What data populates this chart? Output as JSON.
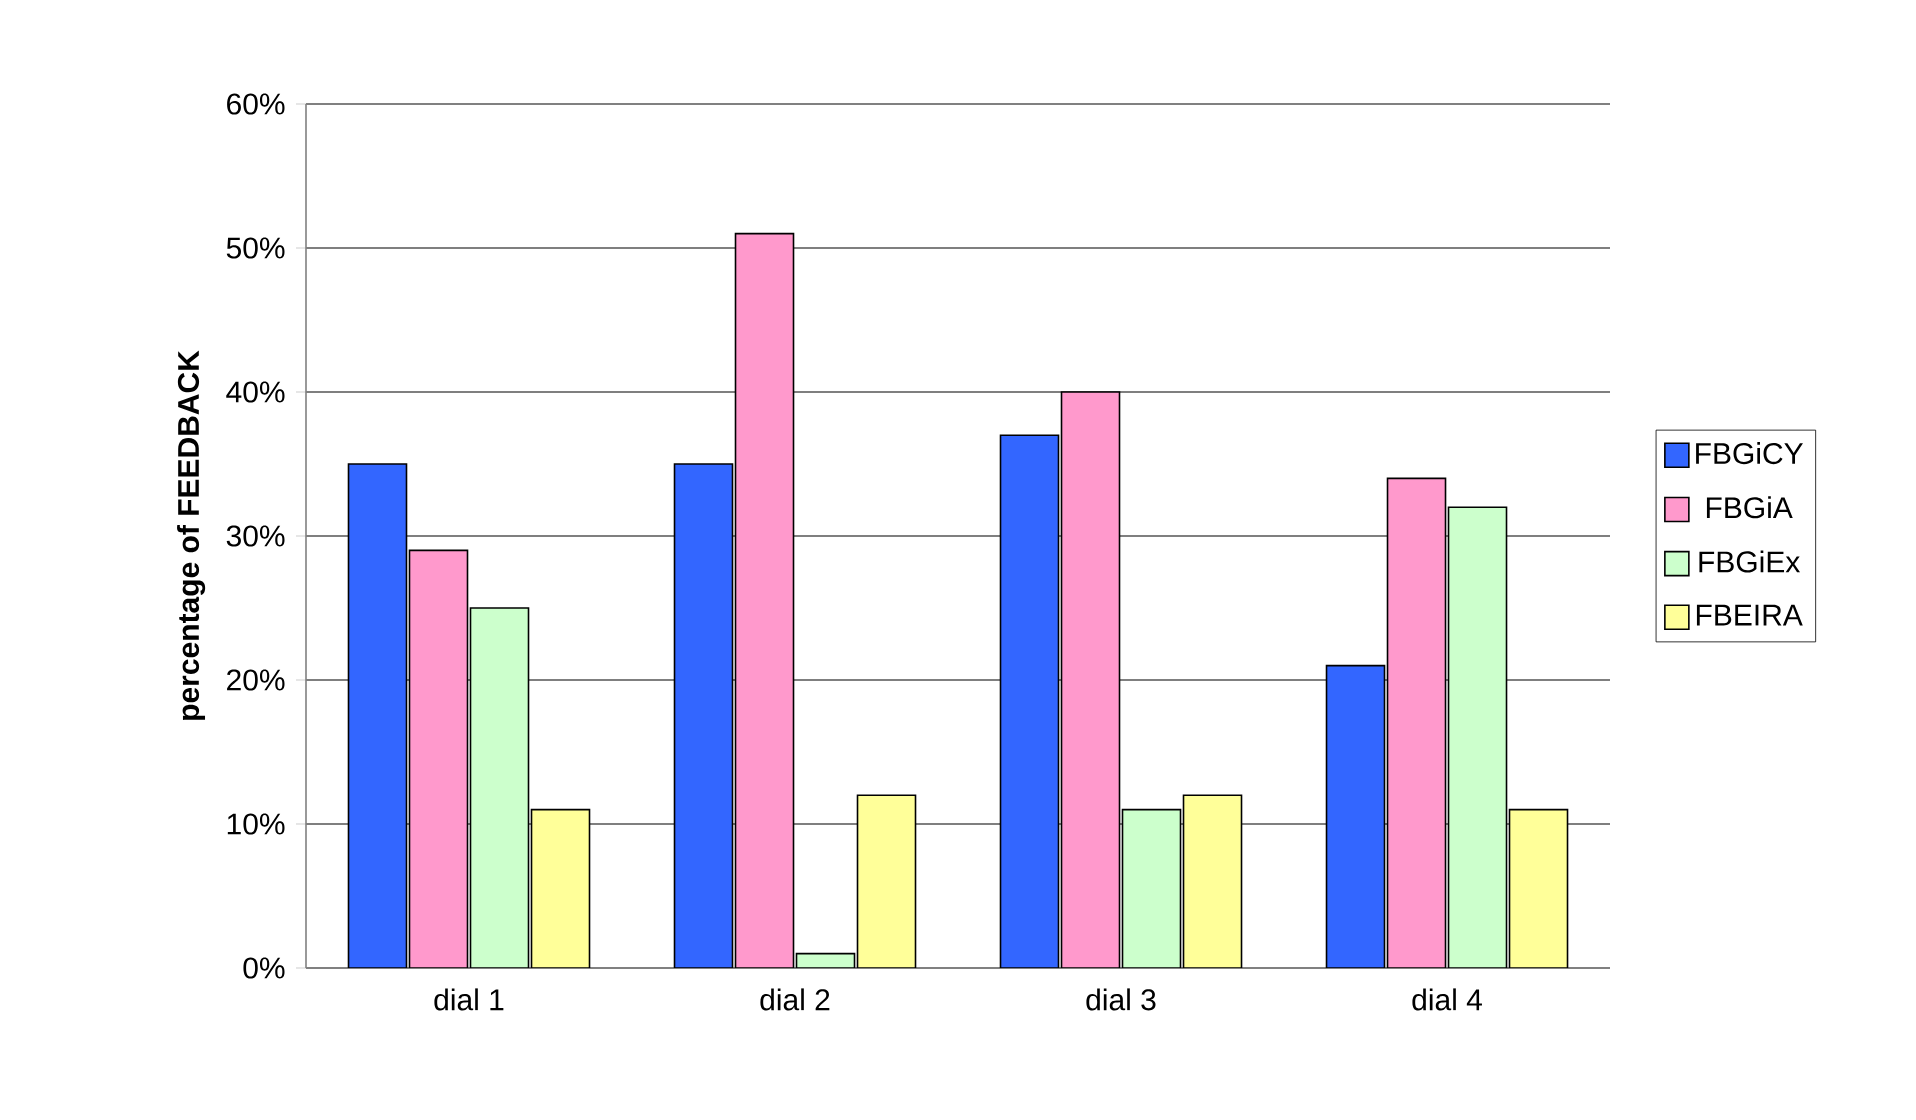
{
  "chart_data": {
    "type": "bar",
    "ylabel": "percentage of FEEDBACK",
    "categories": [
      "dial 1",
      "dial 2",
      "dial 3",
      "dial 4"
    ],
    "series": [
      {
        "name": "FBGiCY",
        "color": "#3366ff",
        "values": [
          35,
          35,
          37,
          21
        ]
      },
      {
        "name": "FBGiA",
        "color": "#ff99cc",
        "values": [
          29,
          51,
          40,
          34
        ]
      },
      {
        "name": "FBGiEx",
        "color": "#ccffcc",
        "values": [
          25,
          1,
          11,
          32
        ]
      },
      {
        "name": "FBEIRA",
        "color": "#ffff99",
        "values": [
          11,
          12,
          12,
          11
        ]
      }
    ],
    "ylim": [
      0,
      60
    ],
    "yticks": [
      {
        "value": 0,
        "label": "0%"
      },
      {
        "value": 10,
        "label": "10%"
      },
      {
        "value": 20,
        "label": "20%"
      },
      {
        "value": 30,
        "label": "30%"
      },
      {
        "value": 40,
        "label": "40%"
      },
      {
        "value": 50,
        "label": "50%"
      },
      {
        "value": 60,
        "label": "60%"
      }
    ],
    "grid": "y",
    "legend": "right"
  }
}
